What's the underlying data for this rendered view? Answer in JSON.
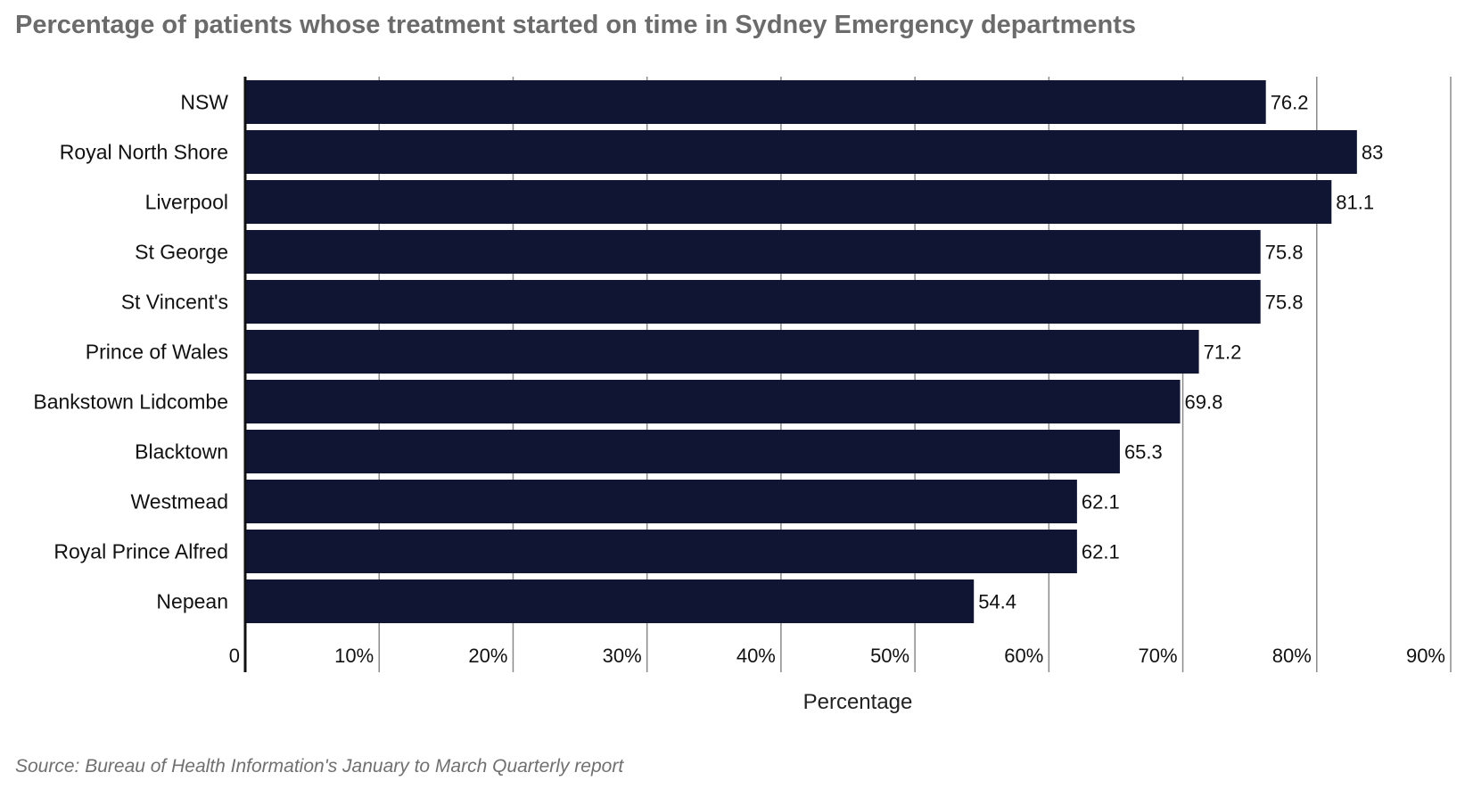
{
  "chart_data": {
    "type": "bar",
    "orientation": "horizontal",
    "title": "Percentage of patients whose treatment started on time in Sydney Emergency departments",
    "categories": [
      "NSW",
      "Royal North Shore",
      "Liverpool",
      "St George",
      "St Vincent's",
      "Prince of Wales",
      "Bankstown Lidcombe",
      "Blacktown",
      "Westmead",
      "Royal Prince Alfred",
      "Nepean"
    ],
    "values": [
      76.2,
      83,
      81.1,
      75.8,
      75.8,
      71.2,
      69.8,
      65.3,
      62.1,
      62.1,
      54.4
    ],
    "value_labels": [
      "76.2",
      "83",
      "81.1",
      "75.8",
      "75.8",
      "71.2",
      "69.8",
      "65.3",
      "62.1",
      "62.1",
      "54.4"
    ],
    "xlabel": "Percentage",
    "ylabel": "",
    "xlim": [
      0,
      90
    ],
    "xticks": [
      0,
      10,
      20,
      30,
      40,
      50,
      60,
      70,
      80,
      90
    ],
    "xtick_labels": [
      "0",
      "10%",
      "20%",
      "30%",
      "40%",
      "50%",
      "60%",
      "70%",
      "80%",
      "90%"
    ],
    "grid": true,
    "bar_color": "#101534",
    "source": "Source: Bureau of Health Information's January to March Quarterly report"
  }
}
